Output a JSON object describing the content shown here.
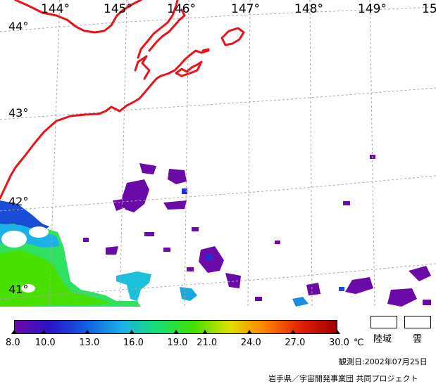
{
  "map": {
    "lon_labels": [
      "144°",
      "145°",
      "146°",
      "147°",
      "148°",
      "149°",
      "15"
    ],
    "lat_labels": [
      "44°",
      "43°",
      "42°",
      "41°"
    ],
    "colors": {
      "coast": "#e8141a",
      "grid": "#a8a8a8",
      "land_mask": "#ffffff"
    }
  },
  "colorbar": {
    "min": 8.0,
    "max": 30.0,
    "unit": "℃",
    "ticks": [
      "8.0",
      "10.0",
      "13.0",
      "16.0",
      "19.0",
      "21.0",
      "24.0",
      "27.0",
      "30.0"
    ],
    "gradient_colors": [
      "#6a0aa8",
      "#2a14c8",
      "#1060e0",
      "#1cb0e8",
      "#18e070",
      "#40e000",
      "#e0e000",
      "#ff8000",
      "#e02000",
      "#a00000"
    ]
  },
  "legend": {
    "land": "陸域",
    "cloud": "雲"
  },
  "observation_date": "観測日:2002年07月25日",
  "credit": "岩手県／宇宙開発事業団 共同プロジェクト"
}
